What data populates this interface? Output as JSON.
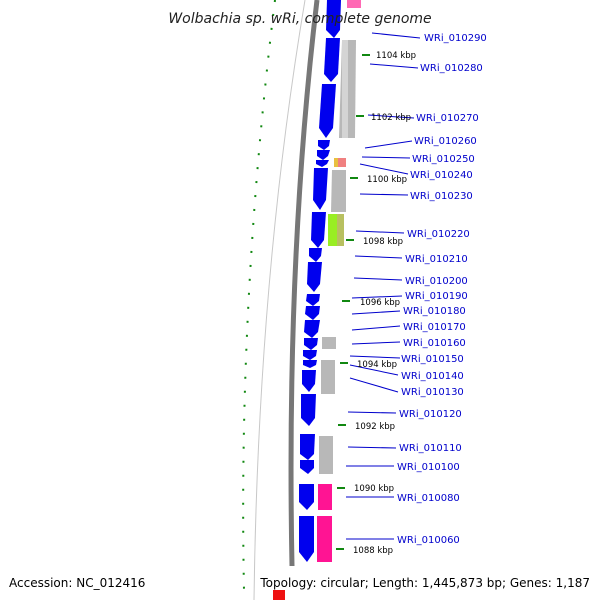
{
  "title": "Wolbachia sp. wRi, complete genome",
  "accession": "Accession: NC_012416",
  "topology": "Topology: circular; Length: 1,445,873 bp; Genes: 1,187",
  "colors": {
    "forward_cds": "#0000ee",
    "reverse_gray": "#b8b8b8",
    "pink": "#ff1493",
    "lime": "#99ee22",
    "backbone": "#777777",
    "gc_tick": "#118811",
    "label": "#0000cc"
  },
  "kbp_labels": [
    "1104 kbp",
    "1102 kbp",
    "1100 kbp",
    "1098 kbp",
    "1096 kbp",
    "1094 kbp",
    "1092 kbp",
    "1090 kbp",
    "1088 kbp"
  ],
  "gene_labels": [
    "WRi_010290",
    "WRi_010280",
    "WRi_010270",
    "WRi_010260",
    "WRi_010250",
    "WRi_010240",
    "WRi_010230",
    "WRi_010220",
    "WRi_010210",
    "WRi_010200",
    "WRi_010190",
    "WRi_010180",
    "WRi_010170",
    "WRi_010160",
    "WRi_010150",
    "WRi_010140",
    "WRi_010130",
    "WRi_010120",
    "WRi_010110",
    "WRi_010100",
    "WRi_010080",
    "WRi_010060"
  ]
}
